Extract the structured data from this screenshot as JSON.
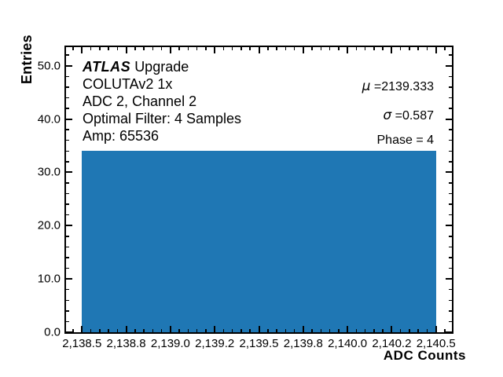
{
  "chart_data": {
    "type": "bar",
    "title": "",
    "xlabel": "ADC Counts",
    "ylabel": "Entries",
    "bar_color": "#1f77b4",
    "axis_color": "#000000",
    "xlim": [
      2138.41,
      2140.59
    ],
    "ylim": [
      0,
      53.5
    ],
    "bars": [
      {
        "x_start": 2138.5,
        "x_end": 2140.5,
        "height": 34
      }
    ],
    "x_major_ticks": [
      2138.5,
      2138.75,
      2139.0,
      2139.25,
      2139.5,
      2139.75,
      2140.0,
      2140.25,
      2140.5
    ],
    "x_tick_labels": [
      "2,138.5",
      "2,138.8",
      "2,139.0",
      "2,139.2",
      "2,139.5",
      "2,139.8",
      "2,140.0",
      "2,140.2",
      "2,140.5"
    ],
    "x_minor_step": 0.05,
    "y_major_ticks": [
      0,
      10,
      20,
      30,
      40,
      50
    ],
    "y_tick_labels": [
      "0.0",
      "10.0",
      "20.0",
      "30.0",
      "40.0",
      "50.0"
    ],
    "y_minor_step": 2,
    "grid": false,
    "annotations": {
      "brand": "ATLAS",
      "brand_suffix": "Upgrade",
      "lines": [
        "COLUTAv2 1x",
        "ADC 2, Channel 2",
        "Optimal Filter: 4 Samples",
        "Amp: 65536"
      ]
    },
    "stats": [
      {
        "symbol": "μ",
        "eq": "=",
        "value": "2139.333"
      },
      {
        "symbol": "σ",
        "eq": "=",
        "value": "0.587"
      }
    ],
    "phase_label": "Phase = 4"
  }
}
